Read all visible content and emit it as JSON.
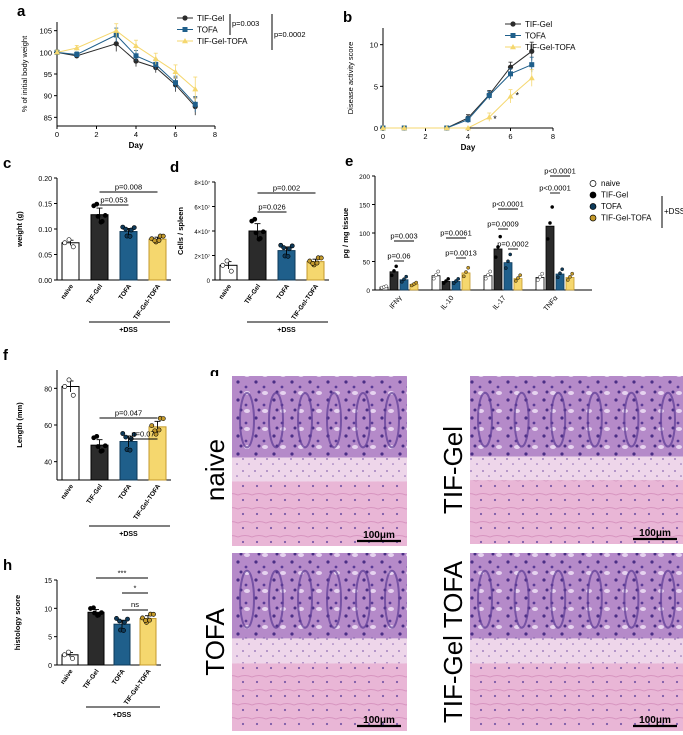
{
  "colors": {
    "tifgel": "#2b2b2b",
    "tofa": "#1f5f8b",
    "combo": "#f5d76e",
    "combo_dark": "#c49a2c",
    "naive": "#ffffff"
  },
  "chart_data": [
    {
      "id": "a",
      "panel_label": "a",
      "type": "line",
      "xlabel": "Day",
      "ylabel": "% of initial body weight",
      "xlim": [
        0,
        8
      ],
      "ylim": [
        83,
        107
      ],
      "xticks": [
        "0",
        "2",
        "4",
        "6",
        "8"
      ],
      "yticks": [
        "85",
        "90",
        "95",
        "100",
        "105"
      ],
      "x": [
        0,
        1,
        3,
        4,
        5,
        6,
        7
      ],
      "series": [
        {
          "name": "TIF-Gel",
          "values": [
            100,
            99.2,
            102,
            98,
            96.5,
            92.5,
            87.5
          ],
          "err": [
            0.5,
            0.6,
            1.8,
            1.3,
            1.2,
            1.6,
            2
          ]
        },
        {
          "name": "TOFA",
          "values": [
            100,
            99.5,
            104,
            99.2,
            97.2,
            93,
            88
          ],
          "err": [
            0.5,
            0.6,
            1.6,
            1.2,
            1.2,
            1.5,
            1.8
          ]
        },
        {
          "name": "TIF-Gel-TOFA",
          "values": [
            100,
            101,
            105,
            101.5,
            98.5,
            95.5,
            91.5
          ],
          "err": [
            0.5,
            0.6,
            1.6,
            1.3,
            1.3,
            1.6,
            2.8
          ]
        }
      ],
      "legend": "top-right",
      "annotations": [
        "p=0.003",
        "p=0.0002"
      ]
    },
    {
      "id": "b",
      "panel_label": "b",
      "type": "line",
      "xlabel": "Day",
      "ylabel": "Disease activity score",
      "xlim": [
        0,
        8
      ],
      "ylim": [
        0,
        12
      ],
      "xticks": [
        "0",
        "2",
        "4",
        "6",
        "8"
      ],
      "yticks": [
        "0",
        "5",
        "10"
      ],
      "x": [
        0,
        1,
        3,
        4,
        5,
        6,
        7
      ],
      "series": [
        {
          "name": "TIF-Gel",
          "values": [
            0,
            0,
            0,
            1.2,
            4,
            7.3,
            9.2
          ],
          "err": [
            0,
            0,
            0,
            0.4,
            0.5,
            0.6,
            1.1
          ]
        },
        {
          "name": "TOFA",
          "values": [
            0,
            0,
            0,
            1,
            3.9,
            6.5,
            7.6
          ],
          "err": [
            0,
            0,
            0,
            0.4,
            0.5,
            0.6,
            0.9
          ]
        },
        {
          "name": "TIF-Gel-TOFA",
          "values": [
            0,
            0,
            0,
            0,
            1.3,
            3.8,
            6
          ],
          "err": [
            0,
            0,
            0,
            0,
            0.5,
            0.8,
            1
          ]
        }
      ],
      "legend": "top-right",
      "annotations": [
        "*",
        "*"
      ]
    },
    {
      "id": "c",
      "panel_label": "c",
      "type": "bar",
      "ylabel": "weight (g)",
      "ylim": [
        0,
        0.2
      ],
      "yticks": [
        "0.00",
        "0.05",
        "0.10",
        "0.15",
        "0.20"
      ],
      "categories": [
        "naive",
        "TIF-Gel",
        "TOFA",
        "TIF-Gel-TOFA"
      ],
      "values": [
        0.073,
        0.128,
        0.095,
        0.08
      ],
      "err": [
        0.005,
        0.013,
        0.006,
        0.004
      ],
      "group_label": "+DSS",
      "annotations": [
        "p=0.053",
        "p=0.008"
      ]
    },
    {
      "id": "d",
      "panel_label": "d",
      "type": "bar",
      "ylabel": "Cells / spleen",
      "ylim": [
        0,
        80000000
      ],
      "yticks": [
        "0",
        "2×10⁷",
        "4×10⁷",
        "6×10⁷",
        "8×10⁷"
      ],
      "categories": [
        "naive",
        "TIF-Gel",
        "TOFA",
        "TIF-Gel-TOFA"
      ],
      "values": [
        12000000,
        40000000,
        24000000,
        15000000
      ],
      "err": [
        3000000,
        6000000,
        3000000,
        2000000
      ],
      "group_label": "+DSS",
      "annotations": [
        "p=0.026",
        "p=0.002"
      ]
    },
    {
      "id": "e",
      "panel_label": "e",
      "type": "bar",
      "ylabel": "pg / mg tissue",
      "ylim": [
        0,
        200
      ],
      "yticks": [
        "0",
        "50",
        "100",
        "150",
        "200"
      ],
      "categories": [
        "IFNγ",
        "IL-10",
        "IL-17",
        "TNFα"
      ],
      "series": [
        {
          "name": "naive",
          "values": [
            5,
            25,
            25,
            22
          ]
        },
        {
          "name": "TIF-Gel",
          "values": [
            32,
            15,
            72,
            112
          ]
        },
        {
          "name": "TOFA",
          "values": [
            18,
            15,
            48,
            28
          ]
        },
        {
          "name": "TIF-Gel-TOFA",
          "values": [
            10,
            30,
            20,
            22
          ]
        }
      ],
      "legend": "right",
      "legend_group": "+DSS",
      "annotations": [
        "p=0.003",
        "p=0.06",
        "p=0.0061",
        "p=0.0013",
        "p<0.0001",
        "p=0.0009",
        "p=0.0002",
        "p<0.0001",
        "p<0.0001"
      ]
    },
    {
      "id": "f",
      "panel_label": "f",
      "type": "bar",
      "ylabel": "Length (mm)",
      "ylim": [
        30,
        90
      ],
      "yticks": [
        "40",
        "60",
        "80"
      ],
      "categories": [
        "naive",
        "TIF-Gel",
        "TOFA",
        "TIF-Gel-TOFA"
      ],
      "values": [
        81,
        49,
        51,
        59
      ],
      "err": [
        3,
        3,
        3,
        3
      ],
      "group_label": "+DSS",
      "annotations": [
        "p=0.047",
        "p=0.07"
      ]
    },
    {
      "id": "h",
      "panel_label": "h",
      "type": "bar",
      "ylabel": "histology score",
      "ylim": [
        0,
        15
      ],
      "yticks": [
        "0",
        "5",
        "10",
        "15"
      ],
      "categories": [
        "naive",
        "TIF-Gel",
        "TOFA",
        "TIF-Gel-TOFA"
      ],
      "values": [
        1.8,
        9.3,
        7.2,
        8.2
      ],
      "err": [
        0.4,
        0.5,
        0.7,
        0.5
      ],
      "group_label": "+DSS",
      "annotations": [
        "***",
        "*",
        "ns"
      ]
    }
  ],
  "histology": {
    "panel_label": "g",
    "images": [
      {
        "label": "naive",
        "scale": "100μm"
      },
      {
        "label": "TIF-Gel",
        "scale": "100μm"
      },
      {
        "label": "TOFA",
        "scale": "100μm"
      },
      {
        "label": "TIF-Gel TOFA",
        "scale": "100μm"
      }
    ]
  }
}
